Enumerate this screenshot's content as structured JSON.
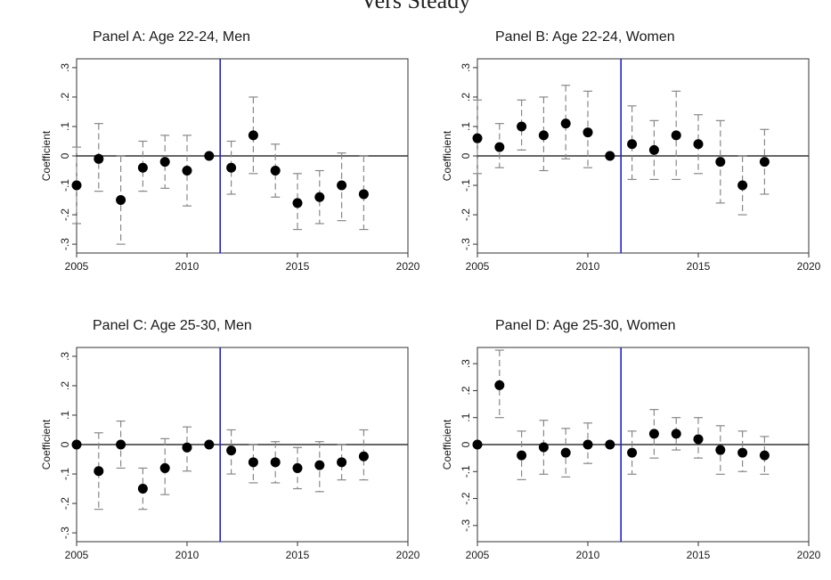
{
  "figure": {
    "top_text": "Vers Steady"
  },
  "chart_data": [
    {
      "type": "scatter",
      "title": "Panel A: Age 22-24, Men",
      "xlabel": "",
      "ylabel": "Coefficient",
      "xlim": [
        2005,
        2020
      ],
      "ylim": [
        -0.33,
        0.33
      ],
      "xticks": [
        2005,
        2010,
        2015,
        2020
      ],
      "yticks": [
        0.3,
        0.2,
        0.1,
        0,
        -0.1,
        -0.2,
        -0.3
      ],
      "ytick_labels": [
        ".3",
        ".2",
        ".1",
        "0",
        "-.1",
        "-.2",
        "-.3"
      ],
      "reference_line_y": 0,
      "event_line_x": 2011.5,
      "colors": {
        "event_line": "#2222cc",
        "points": "#000000",
        "ci": "#888888"
      },
      "x": [
        2005,
        2006,
        2007,
        2008,
        2009,
        2010,
        2011,
        2012,
        2013,
        2014,
        2015,
        2016,
        2017,
        2018
      ],
      "y": [
        -0.1,
        -0.01,
        -0.15,
        -0.04,
        -0.02,
        -0.05,
        0.0,
        -0.04,
        0.07,
        -0.05,
        -0.16,
        -0.14,
        -0.1,
        -0.13
      ],
      "ci_low": [
        -0.23,
        -0.12,
        -0.3,
        -0.12,
        -0.11,
        -0.17,
        0.0,
        -0.13,
        -0.06,
        -0.14,
        -0.25,
        -0.23,
        -0.22,
        -0.25
      ],
      "ci_high": [
        0.03,
        0.11,
        0.0,
        0.05,
        0.07,
        0.07,
        0.0,
        0.05,
        0.2,
        0.04,
        -0.06,
        -0.05,
        0.01,
        0.0
      ]
    },
    {
      "type": "scatter",
      "title": "Panel B: Age 22-24, Women",
      "xlabel": "",
      "ylabel": "Coefficient",
      "xlim": [
        2005,
        2020
      ],
      "ylim": [
        -0.33,
        0.33
      ],
      "xticks": [
        2005,
        2010,
        2015,
        2020
      ],
      "yticks": [
        0.3,
        0.2,
        0.1,
        0,
        -0.1,
        -0.2,
        -0.3
      ],
      "ytick_labels": [
        ".3",
        ".2",
        ".1",
        "0",
        "-.1",
        "-.2",
        "-.3"
      ],
      "reference_line_y": 0,
      "event_line_x": 2011.5,
      "colors": {
        "event_line": "#2222cc",
        "points": "#000000",
        "ci": "#888888"
      },
      "x": [
        2005,
        2006,
        2007,
        2008,
        2009,
        2010,
        2011,
        2012,
        2013,
        2014,
        2015,
        2016,
        2017,
        2018
      ],
      "y": [
        0.06,
        0.03,
        0.1,
        0.07,
        0.11,
        0.08,
        0.0,
        0.04,
        0.02,
        0.07,
        0.04,
        -0.02,
        -0.1,
        -0.02
      ],
      "ci_low": [
        -0.06,
        -0.04,
        0.02,
        -0.05,
        -0.01,
        -0.04,
        0.0,
        -0.08,
        -0.08,
        -0.08,
        -0.06,
        -0.16,
        -0.2,
        -0.13
      ],
      "ci_high": [
        0.19,
        0.11,
        0.19,
        0.2,
        0.24,
        0.22,
        0.0,
        0.17,
        0.12,
        0.22,
        0.14,
        0.12,
        0.0,
        0.09
      ]
    },
    {
      "type": "scatter",
      "title": "Panel C: Age 25-30, Men",
      "xlabel": "",
      "ylabel": "Coefficient",
      "xlim": [
        2005,
        2020
      ],
      "ylim": [
        -0.33,
        0.33
      ],
      "xticks": [
        2005,
        2010,
        2015,
        2020
      ],
      "yticks": [
        0.3,
        0.2,
        0.1,
        0,
        -0.1,
        -0.2,
        -0.3
      ],
      "ytick_labels": [
        ".3",
        ".2",
        ".1",
        "0",
        "-.1",
        "-.2",
        "-.3"
      ],
      "reference_line_y": 0,
      "event_line_x": 2011.5,
      "colors": {
        "event_line": "#2222cc",
        "points": "#000000",
        "ci": "#888888"
      },
      "x": [
        2005,
        2006,
        2007,
        2008,
        2009,
        2010,
        2011,
        2012,
        2013,
        2014,
        2015,
        2016,
        2017,
        2018
      ],
      "y": [
        0.0,
        -0.09,
        0.0,
        -0.15,
        -0.08,
        -0.01,
        0.0,
        -0.02,
        -0.06,
        -0.06,
        -0.08,
        -0.07,
        -0.06,
        -0.04
      ],
      "ci_low": [
        0.0,
        -0.22,
        -0.08,
        -0.22,
        -0.17,
        -0.09,
        0.0,
        -0.1,
        -0.13,
        -0.13,
        -0.15,
        -0.16,
        -0.12,
        -0.12
      ],
      "ci_high": [
        0.0,
        0.04,
        0.08,
        -0.08,
        0.02,
        0.06,
        0.0,
        0.05,
        0.0,
        0.01,
        -0.01,
        0.01,
        0.0,
        0.05
      ]
    },
    {
      "type": "scatter",
      "title": "Panel D: Age 25-30, Women",
      "xlabel": "",
      "ylabel": "Coefficient",
      "xlim": [
        2005,
        2020
      ],
      "ylim": [
        -0.36,
        0.36
      ],
      "xticks": [
        2005,
        2010,
        2015,
        2020
      ],
      "yticks": [
        0.3,
        0.2,
        0.1,
        0,
        -0.1,
        -0.2,
        -0.3
      ],
      "ytick_labels": [
        ".3",
        ".2",
        ".1",
        "0",
        "-.1",
        "-.2",
        "-.3"
      ],
      "reference_line_y": 0,
      "event_line_x": 2011.5,
      "colors": {
        "event_line": "#2222cc",
        "points": "#000000",
        "ci": "#888888"
      },
      "x": [
        2005,
        2006,
        2007,
        2008,
        2009,
        2010,
        2011,
        2012,
        2013,
        2014,
        2015,
        2016,
        2017,
        2018
      ],
      "y": [
        0.0,
        0.22,
        -0.04,
        -0.01,
        -0.03,
        0.0,
        0.0,
        -0.03,
        0.04,
        0.04,
        0.02,
        -0.02,
        -0.03,
        -0.04
      ],
      "ci_low": [
        0.0,
        0.1,
        -0.13,
        -0.11,
        -0.12,
        -0.07,
        0.0,
        -0.11,
        -0.05,
        -0.02,
        -0.05,
        -0.11,
        -0.1,
        -0.11
      ],
      "ci_high": [
        0.0,
        0.35,
        0.05,
        0.09,
        0.06,
        0.08,
        0.0,
        0.05,
        0.13,
        0.1,
        0.1,
        0.07,
        0.05,
        0.03
      ]
    }
  ]
}
